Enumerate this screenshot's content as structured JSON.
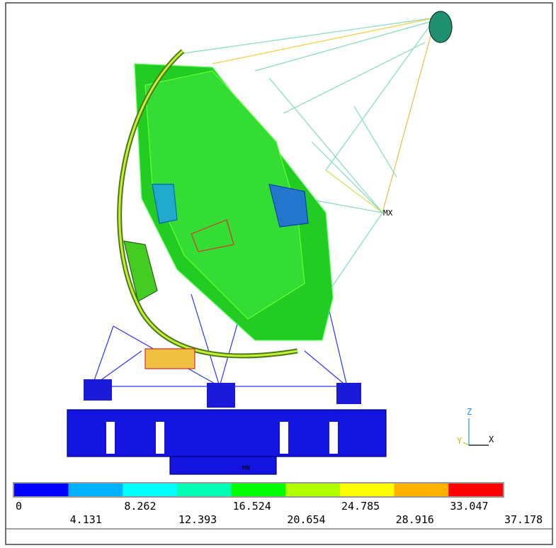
{
  "legend": {
    "colors": [
      "#0000ff",
      "#00b2ff",
      "#00ffff",
      "#00ffb2",
      "#00ff00",
      "#b2ff00",
      "#ffff00",
      "#ffb200",
      "#ff0000"
    ],
    "labels": [
      "0",
      "4.131",
      "8.262",
      "12.393",
      "16.524",
      "20.654",
      "24.785",
      "28.916",
      "33.047",
      "37.178"
    ]
  },
  "annotations": {
    "max": "MX",
    "min": "MN"
  },
  "triad": {
    "z": "Z",
    "y": "Y",
    "x": "X"
  }
}
